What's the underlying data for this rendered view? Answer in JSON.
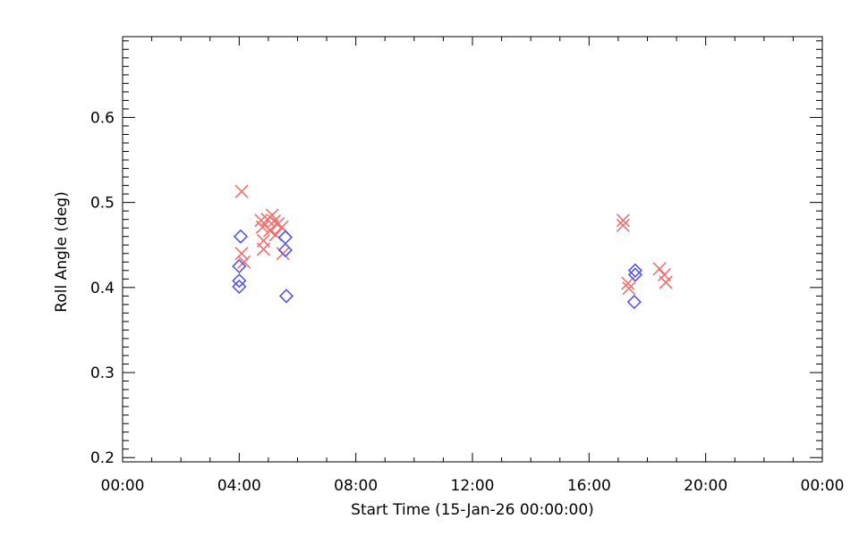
{
  "chart_data": {
    "type": "scatter",
    "title": "",
    "xlabel": "Start Time (15-Jan-26 00:00:00)",
    "ylabel": "Roll Angle (deg)",
    "xlim": [
      "00:00",
      "24:00"
    ],
    "ylim": [
      0.195,
      0.695
    ],
    "x_ticks": [
      "00:00",
      "04:00",
      "08:00",
      "12:00",
      "16:00",
      "20:00",
      "00:00"
    ],
    "y_ticks": [
      "0.2",
      "0.3",
      "0.4",
      "0.5",
      "0.6"
    ],
    "grid": false,
    "series": [
      {
        "marker": "x",
        "color": "#f07070",
        "points": [
          {
            "x": "04:05",
            "y": 0.513
          },
          {
            "x": "04:05",
            "y": 0.44
          },
          {
            "x": "04:10",
            "y": 0.43
          },
          {
            "x": "04:45",
            "y": 0.479
          },
          {
            "x": "04:48",
            "y": 0.471
          },
          {
            "x": "04:50",
            "y": 0.455
          },
          {
            "x": "04:50",
            "y": 0.445
          },
          {
            "x": "04:58",
            "y": 0.48
          },
          {
            "x": "05:03",
            "y": 0.467
          },
          {
            "x": "05:08",
            "y": 0.485
          },
          {
            "x": "05:12",
            "y": 0.478
          },
          {
            "x": "05:15",
            "y": 0.462
          },
          {
            "x": "05:20",
            "y": 0.475
          },
          {
            "x": "05:28",
            "y": 0.471
          },
          {
            "x": "05:30",
            "y": 0.44
          },
          {
            "x": "17:10",
            "y": 0.479
          },
          {
            "x": "17:10",
            "y": 0.473
          },
          {
            "x": "17:20",
            "y": 0.405
          },
          {
            "x": "17:22",
            "y": 0.399
          },
          {
            "x": "18:25",
            "y": 0.422
          },
          {
            "x": "18:35",
            "y": 0.415
          },
          {
            "x": "18:38",
            "y": 0.406
          }
        ]
      },
      {
        "marker": "diamond",
        "color": "#5555ee",
        "points": [
          {
            "x": "04:03",
            "y": 0.46
          },
          {
            "x": "04:00",
            "y": 0.425
          },
          {
            "x": "04:00",
            "y": 0.408
          },
          {
            "x": "04:00",
            "y": 0.401
          },
          {
            "x": "05:35",
            "y": 0.459
          },
          {
            "x": "05:35",
            "y": 0.444
          },
          {
            "x": "05:37",
            "y": 0.39
          },
          {
            "x": "17:35",
            "y": 0.42
          },
          {
            "x": "17:35",
            "y": 0.415
          },
          {
            "x": "17:33",
            "y": 0.383
          }
        ]
      }
    ]
  }
}
